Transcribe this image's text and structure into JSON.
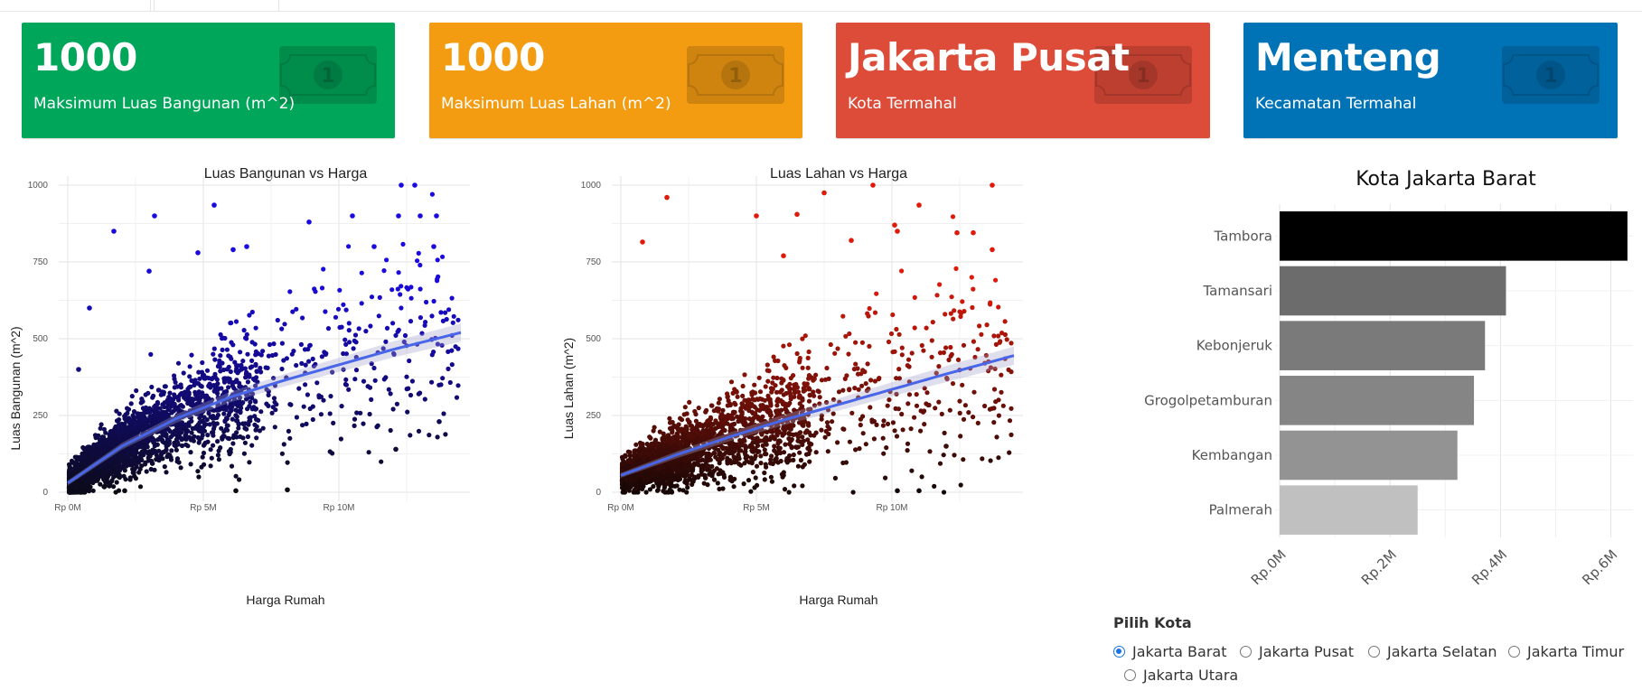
{
  "value_boxes": [
    {
      "value": "1000",
      "subtitle": "Maksimum Luas Bangunan (m^2)",
      "color": "#00a65a",
      "icon": "money-bill-icon"
    },
    {
      "value": "1000",
      "subtitle": "Maksimum Luas Lahan (m^2)",
      "color": "#f39c12",
      "icon": "money-bill-icon"
    },
    {
      "value": "Jakarta Pusat",
      "subtitle": "Kota Termahal",
      "color": "#dd4b39",
      "icon": "money-bill-icon"
    },
    {
      "value": "Menteng",
      "subtitle": "Kecamatan Termahal",
      "color": "#0073b7",
      "icon": "money-bill-icon"
    }
  ],
  "chart_data": [
    {
      "type": "scatter",
      "title": "Luas Bangunan vs Harga",
      "xlabel": "Harga Rumah",
      "ylabel": "Luas Bangunan (m^2)",
      "x_tick_labels": [
        "Rp 0M",
        "Rp 5M",
        "Rp 10M"
      ],
      "y_tick_labels": [
        "0",
        "250",
        "500",
        "750",
        "1000"
      ],
      "x_unit": "million rupiah",
      "xlim": [
        0,
        14.5
      ],
      "ylim": [
        0,
        1000
      ],
      "grid": true,
      "color_low": "#0b0b12",
      "color_high": "#1a0ae0",
      "trend_color": "#4a66e8",
      "trend": {
        "x": [
          0,
          2,
          4,
          6,
          8,
          10,
          12,
          14.5
        ],
        "y": [
          30,
          150,
          240,
          310,
          365,
          415,
          465,
          520
        ]
      },
      "outliers": [
        {
          "x": 0.8,
          "y": 600
        },
        {
          "x": 0.4,
          "y": 400
        },
        {
          "x": 1.7,
          "y": 850
        },
        {
          "x": 3.2,
          "y": 900
        },
        {
          "x": 3.0,
          "y": 720
        },
        {
          "x": 5.4,
          "y": 935
        },
        {
          "x": 8.9,
          "y": 880
        },
        {
          "x": 12.3,
          "y": 1000
        },
        {
          "x": 12.8,
          "y": 1000
        },
        {
          "x": 10.5,
          "y": 900
        },
        {
          "x": 13.0,
          "y": 900
        },
        {
          "x": 13.6,
          "y": 900
        },
        {
          "x": 12.2,
          "y": 900
        },
        {
          "x": 4.8,
          "y": 780
        },
        {
          "x": 6.1,
          "y": 790
        },
        {
          "x": 6.6,
          "y": 800
        },
        {
          "x": 11.3,
          "y": 800
        },
        {
          "x": 13.5,
          "y": 800
        },
        {
          "x": 2.1,
          "y": 5
        },
        {
          "x": 8.1,
          "y": 8
        },
        {
          "x": 6.2,
          "y": 5
        },
        {
          "x": 12.1,
          "y": 140
        },
        {
          "x": 13.7,
          "y": 230
        }
      ]
    },
    {
      "type": "scatter",
      "title": "Luas Lahan vs Harga",
      "xlabel": "Harga Rumah",
      "ylabel": "Luas Lahan (m^2)",
      "x_tick_labels": [
        "Rp 0M",
        "Rp 5M",
        "Rp 10M"
      ],
      "y_tick_labels": [
        "0",
        "250",
        "500",
        "750",
        "1000"
      ],
      "x_unit": "million rupiah",
      "xlim": [
        0,
        14.5
      ],
      "ylim": [
        0,
        1000
      ],
      "grid": true,
      "color_low": "#120706",
      "color_high": "#e01a0a",
      "trend_color": "#4a66e8",
      "trend": {
        "x": [
          0,
          2,
          4,
          6,
          8,
          10,
          12,
          14.5
        ],
        "y": [
          55,
          120,
          180,
          235,
          285,
          335,
          385,
          445
        ]
      },
      "outliers": [
        {
          "x": 0.8,
          "y": 815
        },
        {
          "x": 1.7,
          "y": 960
        },
        {
          "x": 5.0,
          "y": 900
        },
        {
          "x": 6.5,
          "y": 905
        },
        {
          "x": 7.5,
          "y": 975
        },
        {
          "x": 9.3,
          "y": 1000
        },
        {
          "x": 11.0,
          "y": 935
        },
        {
          "x": 13.7,
          "y": 1000
        },
        {
          "x": 10.1,
          "y": 870
        },
        {
          "x": 10.2,
          "y": 850
        },
        {
          "x": 8.5,
          "y": 820
        },
        {
          "x": 13.7,
          "y": 790
        },
        {
          "x": 13.0,
          "y": 845
        },
        {
          "x": 12.4,
          "y": 845
        },
        {
          "x": 6.0,
          "y": 770
        },
        {
          "x": 10.2,
          "y": 5
        },
        {
          "x": 11.0,
          "y": 5
        },
        {
          "x": 12.0,
          "y": 150
        }
      ]
    },
    {
      "type": "bar",
      "orientation": "horizontal",
      "title": "Kota Jakarta Barat",
      "categories": [
        "Tambora",
        "Tamansari",
        "Kebonjeruk",
        "Grogolpetamburan",
        "Kembangan",
        "Palmerah"
      ],
      "values": [
        6.3,
        4.1,
        3.72,
        3.52,
        3.22,
        2.5
      ],
      "unit": "million rupiah",
      "colors": [
        "#000000",
        "#6c6c6c",
        "#7a7a7a",
        "#858585",
        "#939393",
        "#c0c0c0"
      ],
      "x_tick_labels": [
        "Rp.0M",
        "Rp.2M",
        "Rp.4M",
        "Rp.6M"
      ],
      "xlim": [
        0,
        6.4
      ],
      "grid": true
    }
  ],
  "radio": {
    "label": "Pilih Kota",
    "options": [
      "Jakarta Barat",
      "Jakarta Pusat",
      "Jakarta Selatan",
      "Jakarta Timur",
      "Jakarta Utara"
    ],
    "selected": "Jakarta Barat"
  }
}
